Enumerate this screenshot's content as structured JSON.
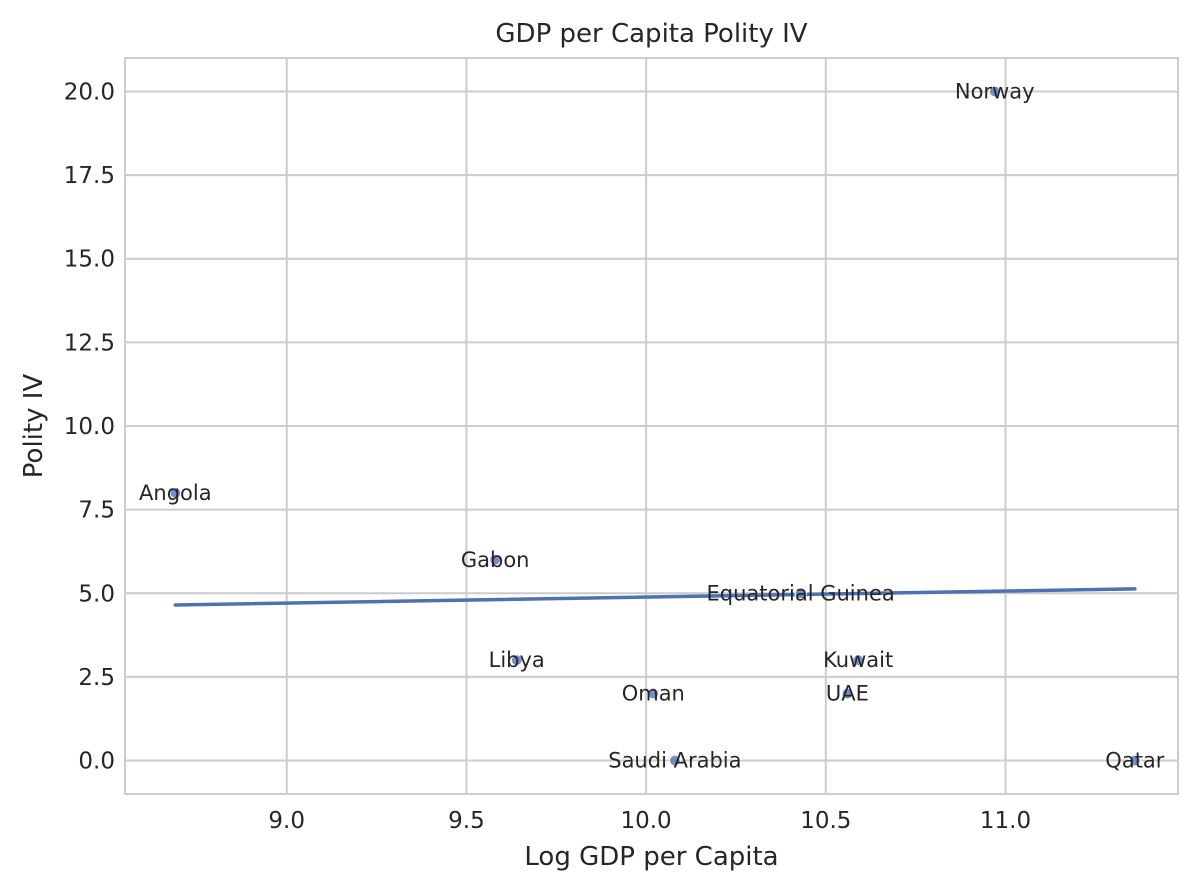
{
  "chart_data": {
    "type": "scatter",
    "title": "GDP per Capita Polity IV",
    "xlabel": "Log GDP per Capita",
    "ylabel": "Polity IV",
    "xlim": [
      8.55,
      11.48
    ],
    "ylim": [
      -1.0,
      21.0
    ],
    "xticks": [
      9.0,
      9.5,
      10.0,
      10.5,
      11.0
    ],
    "xtick_labels": [
      "9.0",
      "9.5",
      "10.0",
      "10.5",
      "11.0"
    ],
    "yticks": [
      0.0,
      2.5,
      5.0,
      7.5,
      10.0,
      12.5,
      15.0,
      17.5,
      20.0
    ],
    "ytick_labels": [
      "0.0",
      "2.5",
      "5.0",
      "7.5",
      "10.0",
      "12.5",
      "15.0",
      "17.5",
      "20.0"
    ],
    "grid": true,
    "points": [
      {
        "label": "Angola",
        "x": 8.69,
        "y": 8
      },
      {
        "label": "Gabon",
        "x": 9.58,
        "y": 6
      },
      {
        "label": "Libya",
        "x": 9.64,
        "y": 3
      },
      {
        "label": "Oman",
        "x": 10.02,
        "y": 2
      },
      {
        "label": "Saudi Arabia",
        "x": 10.08,
        "y": 0
      },
      {
        "label": "Equatorial Guinea",
        "x": 10.43,
        "y": 5
      },
      {
        "label": "Kuwait",
        "x": 10.59,
        "y": 3
      },
      {
        "label": "UAE",
        "x": 10.56,
        "y": 2
      },
      {
        "label": "Norway",
        "x": 10.97,
        "y": 20
      },
      {
        "label": "Qatar",
        "x": 11.36,
        "y": 0
      }
    ],
    "trendline": {
      "x": [
        8.69,
        11.36
      ],
      "y": [
        4.65,
        5.13
      ],
      "color": "#4c72b0"
    },
    "colors": {
      "points": "#5a7cc2",
      "line": "#4c72b0",
      "grid": "#cccccc"
    }
  }
}
